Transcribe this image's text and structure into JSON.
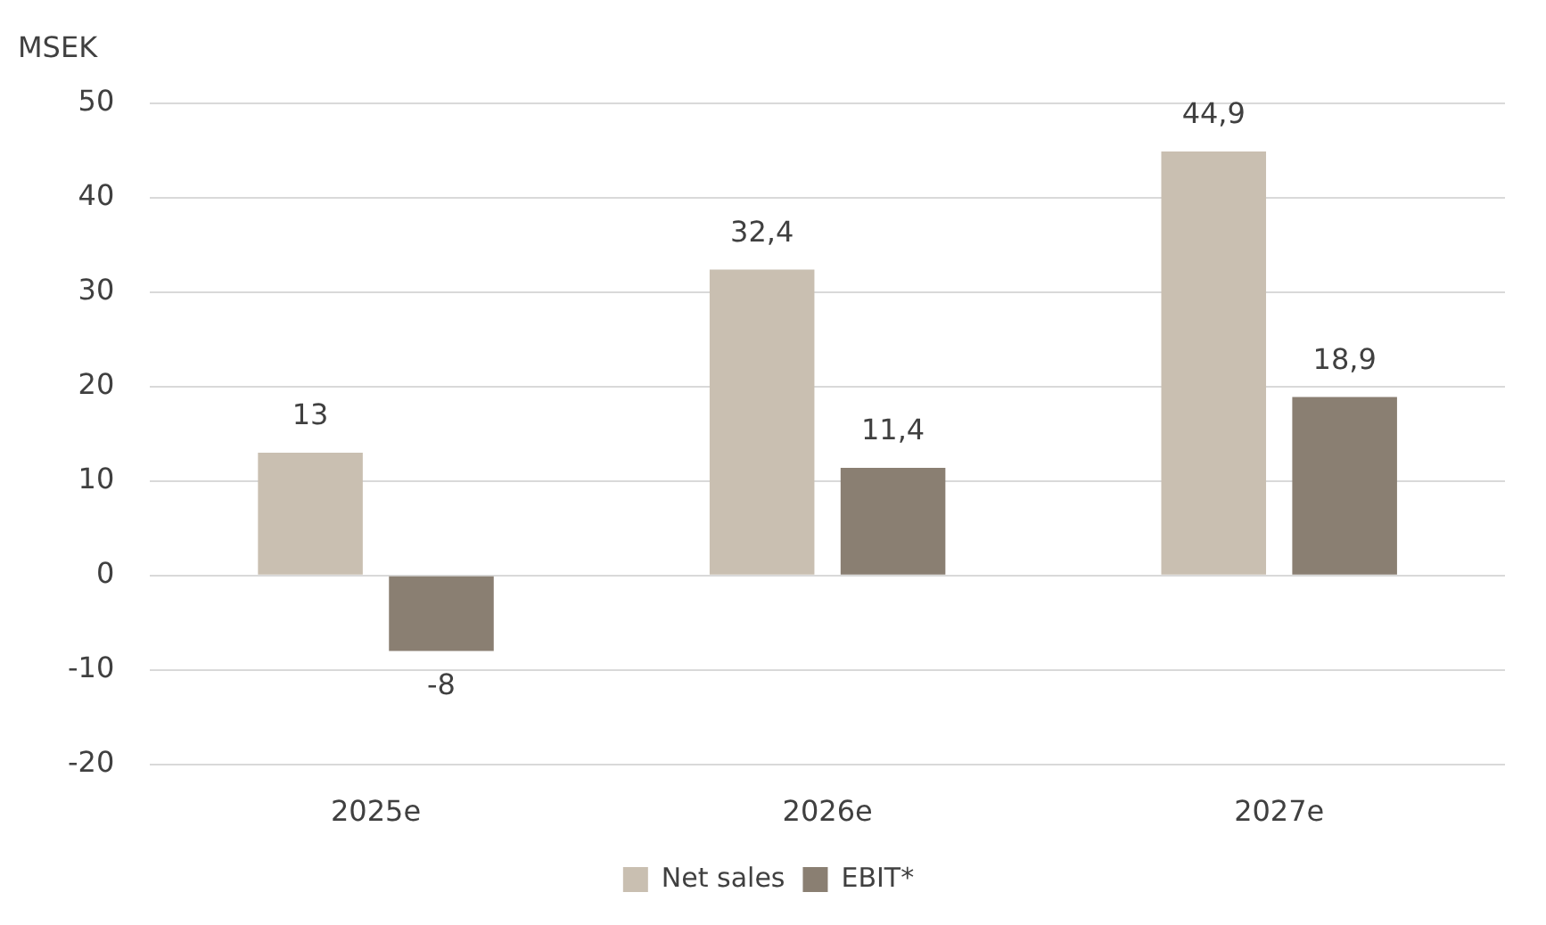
{
  "chart_data": {
    "type": "bar",
    "ylabel": "MSEK",
    "categories": [
      "2025e",
      "2026e",
      "2027e"
    ],
    "series": [
      {
        "name": "Net sales",
        "color": "#c9bfb1",
        "values": [
          13,
          32.4,
          44.9
        ],
        "value_labels": [
          "13",
          "32,4",
          "44,9"
        ]
      },
      {
        "name": "EBIT*",
        "color": "#8a7f72",
        "values": [
          -8,
          11.4,
          18.9
        ],
        "value_labels": [
          "-8",
          "11,4",
          "18,9"
        ]
      }
    ],
    "ylim": [
      -20,
      50
    ],
    "yticks": [
      -20,
      -10,
      0,
      10,
      20,
      30,
      40,
      50
    ],
    "grid": "y",
    "legend": "bottom"
  }
}
